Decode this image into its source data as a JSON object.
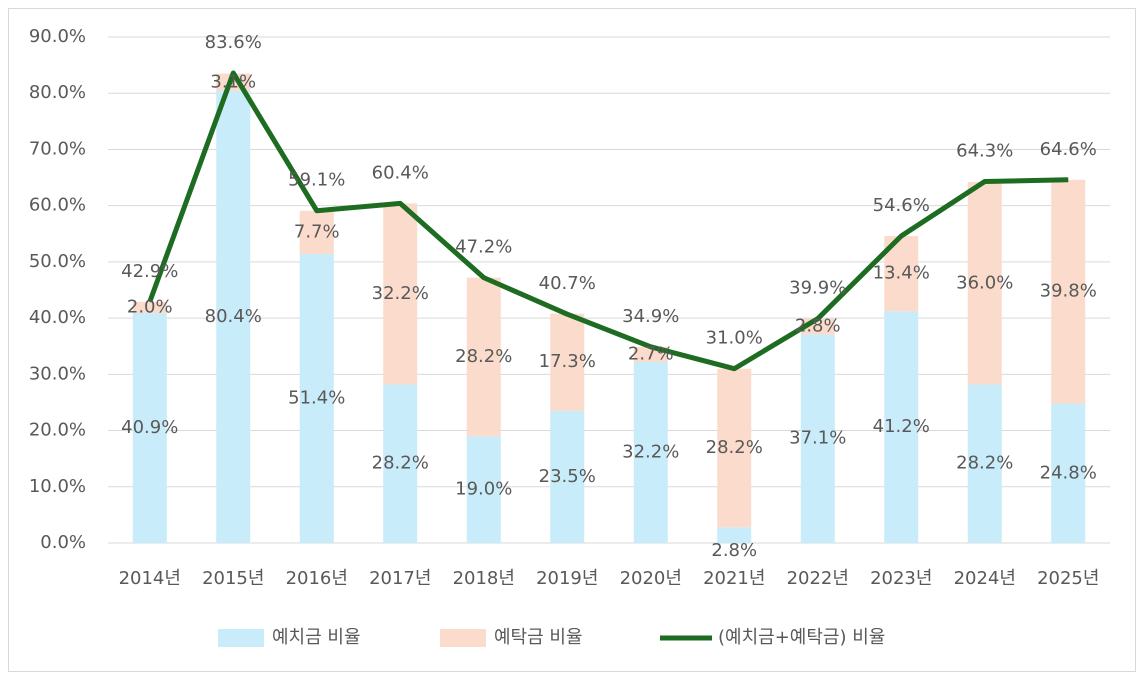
{
  "chart_data": {
    "type": "bar",
    "stacked": true,
    "categories": [
      "2014년",
      "2015년",
      "2016년",
      "2017년",
      "2018년",
      "2019년",
      "2020년",
      "2021년",
      "2022년",
      "2023년",
      "2024년",
      "2025년"
    ],
    "series": [
      {
        "name": "예치금 비율",
        "type": "bar",
        "color": "#c9ecfa",
        "values": [
          40.9,
          80.4,
          51.4,
          28.2,
          19.0,
          23.5,
          32.2,
          2.8,
          37.1,
          41.2,
          28.2,
          24.8
        ],
        "value_labels": [
          "40.9%",
          "80.4%",
          "51.4%",
          "28.2%",
          "19.0%",
          "23.5%",
          "32.2%",
          "2.8%",
          "37.1%",
          "41.2%",
          "28.2%",
          "24.8%"
        ]
      },
      {
        "name": "예탁금 비율",
        "type": "bar",
        "color": "#fbdccc",
        "values": [
          2.0,
          3.1,
          7.7,
          32.2,
          28.2,
          17.3,
          2.7,
          28.2,
          2.8,
          13.4,
          36.0,
          39.8
        ],
        "value_labels": [
          "2.0%",
          "3.1%",
          "7.7%",
          "32.2%",
          "28.2%",
          "17.3%",
          "2.7%",
          "28.2%",
          "2.8%",
          "13.4%",
          "36.0%",
          "39.8%"
        ]
      },
      {
        "name": "(예치금+예탁금) 비율",
        "type": "line",
        "color": "#1e6b22",
        "values": [
          42.9,
          83.6,
          59.1,
          60.4,
          47.2,
          40.7,
          34.9,
          31.0,
          39.9,
          54.6,
          64.3,
          64.6
        ],
        "value_labels": [
          "42.9%",
          "83.6%",
          "59.1%",
          "60.4%",
          "47.2%",
          "40.7%",
          "34.9%",
          "31.0%",
          "39.9%",
          "54.6%",
          "64.3%",
          "64.6%"
        ]
      }
    ],
    "ylim": [
      0,
      90
    ],
    "yticks": [
      {
        "value": 0,
        "label": "0.0%"
      },
      {
        "value": 10,
        "label": "10.0%"
      },
      {
        "value": 20,
        "label": "20.0%"
      },
      {
        "value": 30,
        "label": "30.0%"
      },
      {
        "value": 40,
        "label": "40.0%"
      },
      {
        "value": 50,
        "label": "50.0%"
      },
      {
        "value": 60,
        "label": "60.0%"
      },
      {
        "value": 70,
        "label": "70.0%"
      },
      {
        "value": 80,
        "label": "80.0%"
      },
      {
        "value": 90,
        "label": "90.0%"
      }
    ],
    "grid": true,
    "legend": "bottom"
  }
}
